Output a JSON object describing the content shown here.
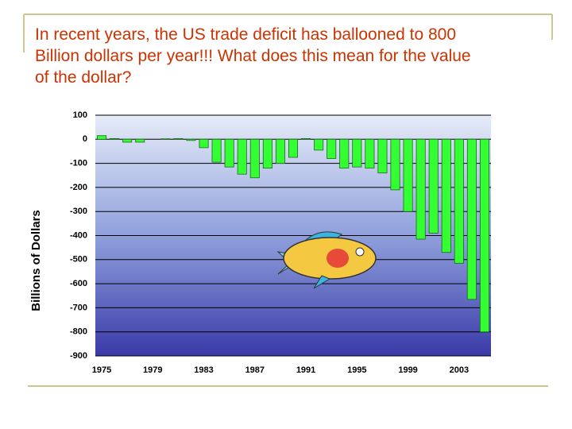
{
  "heading": [
    "In recent years, the US trade deficit has ballooned to 800",
    "Billion dollars per year!!!  What does this mean for the value",
    "of the dollar?"
  ],
  "chart_data": {
    "type": "bar",
    "ylabel": "Billions of Dollars",
    "categories": [
      "1975",
      null,
      null,
      null,
      "1979",
      null,
      null,
      null,
      "1983",
      null,
      null,
      null,
      "1987",
      null,
      null,
      null,
      "1991",
      null,
      null,
      null,
      "1995",
      null,
      null,
      null,
      "1999",
      null,
      null,
      null,
      "2003",
      null,
      null
    ],
    "values": [
      15,
      3,
      -12,
      -12,
      0,
      2,
      3,
      -5,
      -35,
      -95,
      -115,
      -145,
      -160,
      -120,
      -100,
      -75,
      3,
      -45,
      -80,
      -120,
      -115,
      -120,
      -140,
      -210,
      -300,
      -415,
      -390,
      -470,
      -515,
      -665,
      -800
    ],
    "color": "#33ff33",
    "ylim": [
      -900,
      100
    ],
    "yticks": [
      100,
      0,
      -100,
      -200,
      -300,
      -400,
      -500,
      -600,
      -700,
      -800,
      -900
    ],
    "grid": true
  }
}
